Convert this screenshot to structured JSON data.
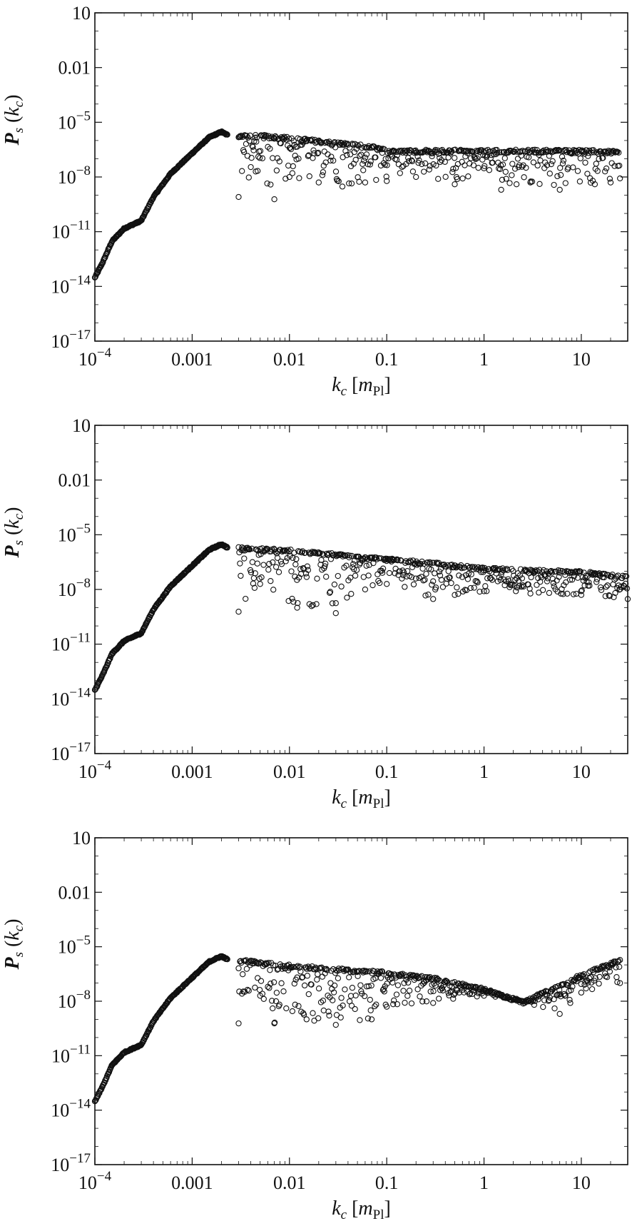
{
  "chart_data": [
    {
      "type": "scatter",
      "title": "",
      "xlabel": "k_c [m_Pl]",
      "ylabel": "P_s (k_c)",
      "xscale": "log",
      "yscale": "log",
      "xlim": [
        0.0001,
        30
      ],
      "ylim": [
        1e-17,
        10
      ],
      "x_ticks": [
        "10^-4",
        "0.001",
        "0.01",
        "0.1",
        "1",
        "10"
      ],
      "y_ticks": [
        "10^-17",
        "10^-14",
        "10^-11",
        "10^-8",
        "10^-5",
        "0.01",
        "10"
      ],
      "grid": false,
      "marker": "open-circle",
      "variant": "flat",
      "series": [
        {
          "rising_branch": [
            [
              0.0001,
              3e-14
            ],
            [
              0.00012,
              2e-13
            ],
            [
              0.00015,
              3e-12
            ],
            [
              0.0002,
              1.5e-11
            ],
            [
              0.0003,
              4e-11
            ],
            [
              0.0004,
              8e-10
            ],
            [
              0.0006,
              1.5e-08
            ],
            [
              0.001,
              2e-07
            ],
            [
              0.0015,
              1.5e-06
            ],
            [
              0.002,
              3e-06
            ],
            [
              0.0023,
              2e-06
            ]
          ],
          "upper_envelope": [
            [
              0.003,
              2e-06
            ],
            [
              0.005,
              2e-06
            ],
            [
              0.01,
              1.5e-06
            ],
            [
              0.03,
              8e-07
            ],
            [
              0.07,
              5e-07
            ],
            [
              0.1,
              3e-07
            ],
            [
              1,
              3e-07
            ],
            [
              10,
              3e-07
            ],
            [
              25,
              2.5e-07
            ]
          ],
          "lower_scatter": [
            [
              0.003,
              8e-10
            ],
            [
              0.0045,
              2e-08
            ],
            [
              0.007,
              6e-10
            ],
            [
              0.01,
              1e-08
            ],
            [
              0.02,
              5e-09
            ],
            [
              0.035,
              3e-09
            ],
            [
              0.06,
              5e-09
            ],
            [
              0.1,
              6e-09
            ],
            [
              0.2,
              1e-08
            ],
            [
              0.5,
              4e-09
            ],
            [
              1,
              3e-08
            ],
            [
              1.5,
              2e-09
            ],
            [
              3,
              5e-09
            ],
            [
              6,
              2e-09
            ],
            [
              20,
              5e-09
            ]
          ]
        }
      ]
    },
    {
      "type": "scatter",
      "title": "",
      "xlabel": "k_c [m_Pl]",
      "ylabel": "P_s (k_c)",
      "xscale": "log",
      "yscale": "log",
      "xlim": [
        0.0001,
        30
      ],
      "ylim": [
        1e-17,
        10
      ],
      "x_ticks": [
        "10^-4",
        "0.001",
        "0.01",
        "0.1",
        "1",
        "10"
      ],
      "y_ticks": [
        "10^-17",
        "10^-14",
        "10^-11",
        "10^-8",
        "10^-5",
        "0.01",
        "10"
      ],
      "grid": false,
      "marker": "open-circle",
      "variant": "declining",
      "series": [
        {
          "rising_branch": [
            [
              0.0001,
              3e-14
            ],
            [
              0.00012,
              2e-13
            ],
            [
              0.00015,
              3e-12
            ],
            [
              0.0002,
              1.5e-11
            ],
            [
              0.0003,
              4e-11
            ],
            [
              0.0004,
              8e-10
            ],
            [
              0.0006,
              1.5e-08
            ],
            [
              0.001,
              2e-07
            ],
            [
              0.0015,
              1.5e-06
            ],
            [
              0.002,
              3e-06
            ],
            [
              0.0023,
              2e-06
            ]
          ],
          "upper_envelope": [
            [
              0.003,
              2e-06
            ],
            [
              0.01,
              1.5e-06
            ],
            [
              0.1,
              5e-07
            ],
            [
              0.3,
              3e-07
            ],
            [
              1,
              1.5e-07
            ],
            [
              10,
              1e-07
            ],
            [
              30,
              5e-08
            ]
          ],
          "lower_scatter": [
            [
              0.003,
              6e-10
            ],
            [
              0.005,
              2e-08
            ],
            [
              0.012,
              1e-09
            ],
            [
              0.03,
              5e-10
            ],
            [
              0.06,
              1e-08
            ],
            [
              0.1,
              2e-08
            ],
            [
              0.3,
              3e-09
            ],
            [
              0.5,
              5e-09
            ],
            [
              1,
              8e-09
            ],
            [
              3,
              6e-09
            ],
            [
              10,
              5e-09
            ],
            [
              30,
              3e-09
            ]
          ]
        }
      ]
    },
    {
      "type": "scatter",
      "title": "",
      "xlabel": "k_c [m_Pl]",
      "ylabel": "P_s (k_c)",
      "xscale": "log",
      "yscale": "log",
      "xlim": [
        0.0001,
        30
      ],
      "ylim": [
        1e-17,
        10
      ],
      "x_ticks": [
        "10^-4",
        "0.001",
        "0.01",
        "0.1",
        "1",
        "10"
      ],
      "y_ticks": [
        "10^-17",
        "10^-14",
        "10^-11",
        "10^-8",
        "10^-5",
        "0.01",
        "10"
      ],
      "grid": false,
      "marker": "open-circle",
      "variant": "dip-and-rise",
      "series": [
        {
          "rising_branch": [
            [
              0.0001,
              3e-14
            ],
            [
              0.00012,
              2e-13
            ],
            [
              0.00015,
              3e-12
            ],
            [
              0.0002,
              1.5e-11
            ],
            [
              0.0003,
              4e-11
            ],
            [
              0.0004,
              8e-10
            ],
            [
              0.0006,
              1.5e-08
            ],
            [
              0.001,
              2e-07
            ],
            [
              0.0015,
              1.5e-06
            ],
            [
              0.002,
              3e-06
            ],
            [
              0.0023,
              2e-06
            ]
          ],
          "upper_envelope": [
            [
              0.003,
              2e-06
            ],
            [
              0.01,
              1e-06
            ],
            [
              0.1,
              4e-07
            ],
            [
              0.3,
              2e-07
            ],
            [
              1,
              5e-08
            ],
            [
              2.5,
              1e-08
            ],
            [
              5,
              5e-08
            ],
            [
              10,
              3e-07
            ],
            [
              25,
              2e-06
            ]
          ],
          "lower_scatter": [
            [
              0.003,
              6e-10
            ],
            [
              0.005,
              2e-08
            ],
            [
              0.007,
              6e-10
            ],
            [
              0.015,
              1e-09
            ],
            [
              0.03,
              5e-10
            ],
            [
              0.07,
              1e-09
            ],
            [
              0.1,
              5e-09
            ],
            [
              0.3,
              8e-09
            ],
            [
              1,
              2e-08
            ],
            [
              2.5,
              1e-08
            ],
            [
              6,
              2e-09
            ],
            [
              10,
              3e-08
            ],
            [
              25,
              1e-07
            ]
          ]
        }
      ]
    }
  ]
}
